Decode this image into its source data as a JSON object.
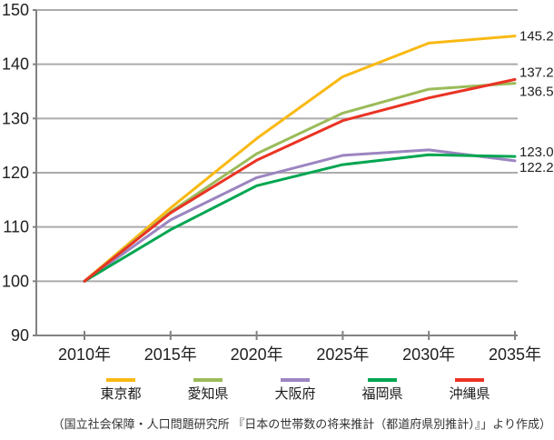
{
  "chart_data": {
    "type": "line",
    "title": "",
    "xlabel": "",
    "ylabel": "",
    "x_labels": [
      "2010年",
      "2015年",
      "2020年",
      "2025年",
      "2030年",
      "2035年"
    ],
    "x_values": [
      2010,
      2015,
      2020,
      2025,
      2030,
      2035
    ],
    "y_ticks": [
      90,
      100,
      110,
      120,
      130,
      140,
      150
    ],
    "ylim": [
      90,
      150
    ],
    "grid": "horizontal",
    "legend_position": "bottom",
    "series": [
      {
        "key": "tokyo",
        "name": "東京都",
        "color": "#F9B913",
        "values": [
          100,
          113.5,
          126.3,
          137.7,
          143.9,
          145.2
        ],
        "end_label": "145.2"
      },
      {
        "key": "aichi",
        "name": "愛知県",
        "color": "#9BBB59",
        "values": [
          100,
          112.8,
          123.5,
          131.0,
          135.4,
          136.5
        ],
        "end_label": "136.5"
      },
      {
        "key": "osaka",
        "name": "大阪府",
        "color": "#9C85C0",
        "values": [
          100,
          111.3,
          119.1,
          123.2,
          124.2,
          122.2
        ],
        "end_label": "122.2"
      },
      {
        "key": "fukuoka",
        "name": "福岡県",
        "color": "#00A651",
        "values": [
          100,
          109.5,
          117.6,
          121.5,
          123.3,
          123.0
        ],
        "end_label": "123.0"
      },
      {
        "key": "okinawa",
        "name": "沖縄県",
        "color": "#EA3323",
        "values": [
          100,
          112.6,
          122.3,
          129.6,
          133.8,
          137.2
        ],
        "end_label": "137.2"
      }
    ]
  },
  "caption": "（国立社会保障・人口問題研究所 『日本の世帯数の将来推計（都道府県別推計）』」より作成）",
  "style": {
    "grid_color": "#ABABAB",
    "axis_color": "#828282",
    "tick_label_color": "#1f1f1f",
    "end_label_color": "#000000"
  }
}
